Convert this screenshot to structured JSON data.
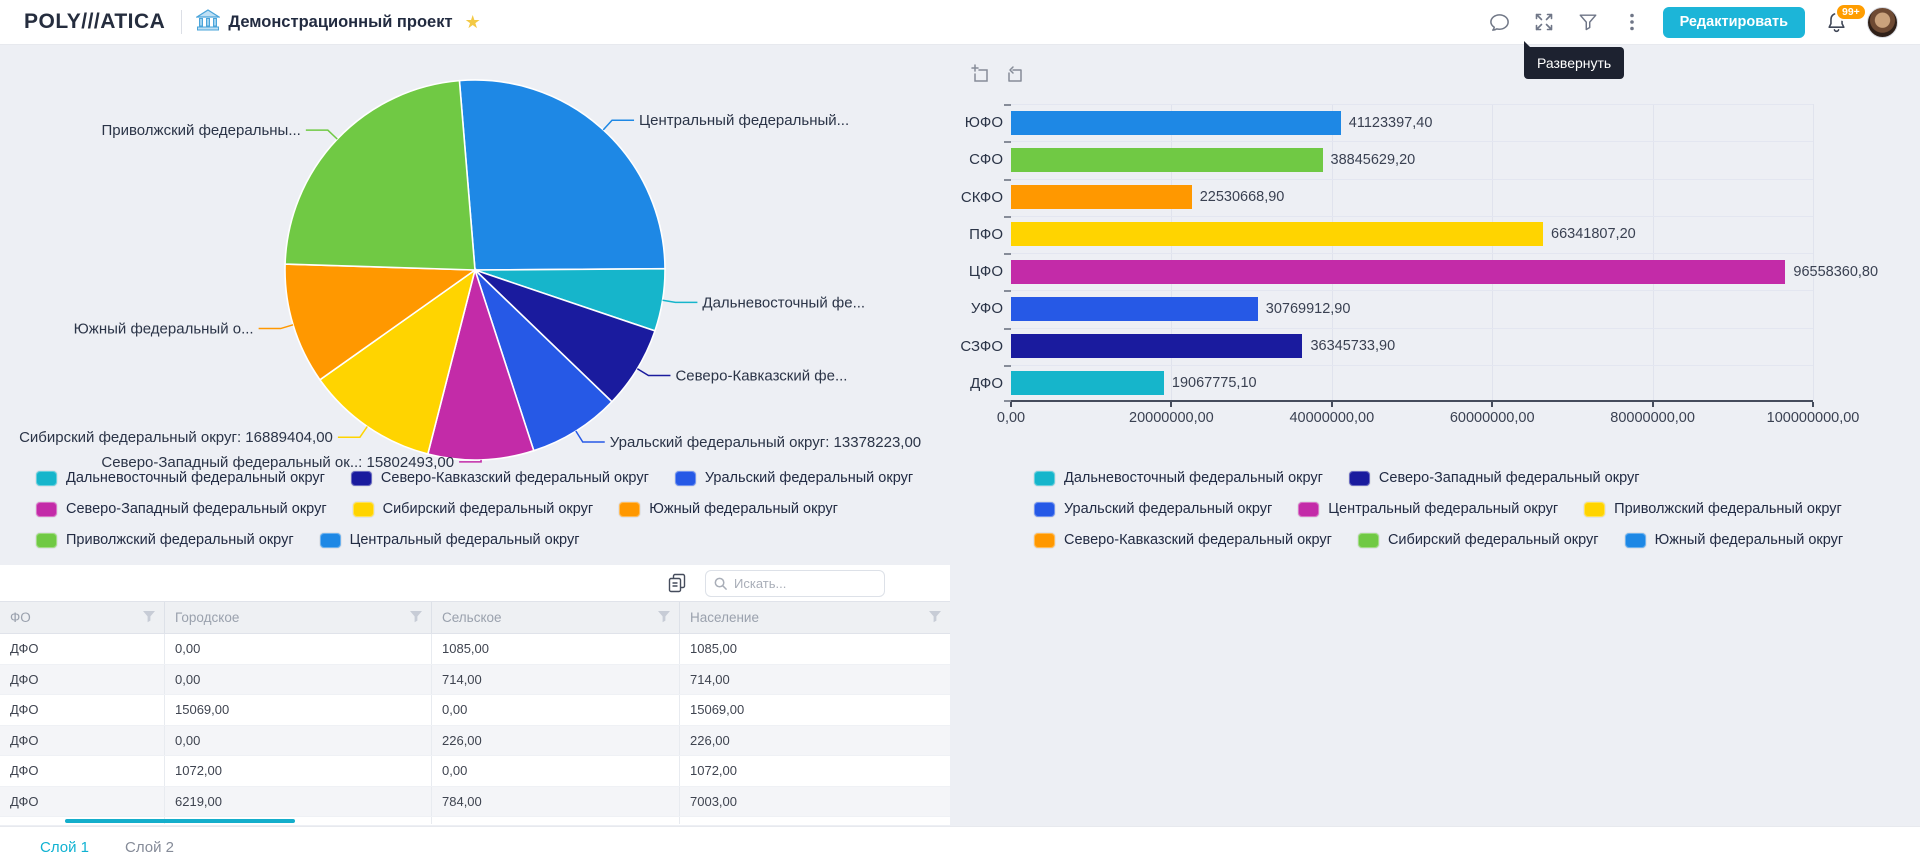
{
  "header": {
    "logo_text": "POLY///ATICA",
    "project_title": "Демонстрационный проект",
    "tooltip": "Развернуть",
    "actions": {
      "edit_button_label": "Редактировать",
      "notifications_badge": "99+"
    }
  },
  "colors": {
    "accent_cyan": "#1cb5d8",
    "page_background": "#edeff4",
    "tooltip_background": "#1d2230",
    "badge_orange": "#ff9d00",
    "palette": {
      "bright_blue": "#1e88e5",
      "cyan": "#16b5cb",
      "navy": "#1a1b9e",
      "royal_blue": "#2659e6",
      "magenta": "#c32ba8",
      "yellow": "#ffd400",
      "orange": "#ff9800",
      "green": "#70c944"
    }
  },
  "chart_data": [
    {
      "type": "pie",
      "start_offset_deg": -4.7,
      "legend_position": "bottom",
      "slices": [
        {
          "name": "Центральный федеральный округ",
          "callout": "Центральный федеральный...",
          "fraction": 0.262,
          "color": "#1e88e5",
          "side": "right"
        },
        {
          "name": "Дальневосточный федеральный округ",
          "callout": "Дальневосточный фе...",
          "fraction": 0.053,
          "color": "#16b5cb",
          "side": "right"
        },
        {
          "name": "Северо-Кавказский федеральный округ",
          "callout": "Северо-Кавказский фе...",
          "fraction": 0.07,
          "color": "#1a1b9e",
          "side": "right"
        },
        {
          "name": "Уральский федеральный округ",
          "callout": "Уральский федеральный округ: 13378223,00",
          "value": 13378223.0,
          "fraction": 0.078,
          "color": "#2659e6",
          "side": "right"
        },
        {
          "name": "Северо-Западный федеральный округ",
          "callout": "Северо-Западный федеральный ок..: 15802493,00",
          "value": 15802493.0,
          "fraction": 0.09,
          "color": "#c32ba8",
          "side": "left",
          "elbow": 2
        },
        {
          "name": "Сибирский федеральный округ",
          "callout": "Сибирский федеральный округ: 16889404,00",
          "value": 16889404.0,
          "fraction": 0.112,
          "color": "#ffd400",
          "side": "left"
        },
        {
          "name": "Южный федеральный округ",
          "callout": "Южный федеральный о...",
          "fraction": 0.103,
          "color": "#ff9800",
          "side": "left"
        },
        {
          "name": "Приволжский федеральный округ",
          "callout": "Приволжский федеральны...",
          "fraction": 0.232,
          "color": "#70c944",
          "side": "left"
        }
      ],
      "legend": [
        {
          "label": "Дальневосточный федеральный округ",
          "color": "#16b5cb"
        },
        {
          "label": "Северо-Кавказский федеральный округ",
          "color": "#1a1b9e"
        },
        {
          "label": "Уральский федеральный округ",
          "color": "#2659e6"
        },
        {
          "label": "Северо-Западный федеральный округ",
          "color": "#c32ba8"
        },
        {
          "label": "Сибирский федеральный округ",
          "color": "#ffd400"
        },
        {
          "label": "Южный федеральный округ",
          "color": "#ff9800"
        },
        {
          "label": "Приволжский федеральный округ",
          "color": "#70c944"
        },
        {
          "label": "Центральный федеральный округ",
          "color": "#1e88e5"
        }
      ]
    },
    {
      "type": "bar",
      "orientation": "horizontal",
      "grid": true,
      "legend_position": "bottom",
      "categories": [
        "ЮФО",
        "СФО",
        "СКФО",
        "ПФО",
        "ЦФО",
        "УФО",
        "СЗФО",
        "ДФО"
      ],
      "values": [
        41123397.4,
        38845629.2,
        22530668.9,
        66341807.2,
        96558360.8,
        30769912.9,
        36345733.9,
        19067775.1
      ],
      "value_labels": [
        "41123397,40",
        "38845629,20",
        "22530668,90",
        "66341807,20",
        "96558360,80",
        "30769912,90",
        "36345733,90",
        "19067775,10"
      ],
      "bar_colors": [
        "#1e88e5",
        "#70c944",
        "#ff9800",
        "#ffd400",
        "#c32ba8",
        "#2659e6",
        "#1a1b9e",
        "#16b5cb"
      ],
      "xlim": [
        0,
        100000000
      ],
      "x_tick_labels": [
        "0,00",
        "20000000,00",
        "40000000,00",
        "60000000,00",
        "80000000,00",
        "100000000,00"
      ],
      "legend": [
        {
          "label": "Дальневосточный федеральный округ",
          "color": "#16b5cb"
        },
        {
          "label": "Северо-Западный федеральный округ",
          "color": "#1a1b9e"
        },
        {
          "label": "Уральский федеральный округ",
          "color": "#2659e6"
        },
        {
          "label": "Центральный федеральный округ",
          "color": "#c32ba8"
        },
        {
          "label": "Приволжский федеральный округ",
          "color": "#ffd400"
        },
        {
          "label": "Северо-Кавказский федеральный округ",
          "color": "#ff9800"
        },
        {
          "label": "Сибирский федеральный округ",
          "color": "#70c944"
        },
        {
          "label": "Южный федеральный округ",
          "color": "#1e88e5"
        }
      ]
    }
  ],
  "table": {
    "search_placeholder": "Искать...",
    "columns": [
      {
        "label": "ФО"
      },
      {
        "label": "Городское"
      },
      {
        "label": "Сельское"
      },
      {
        "label": "Население"
      }
    ],
    "rows": [
      [
        "ДФО",
        "0,00",
        "1085,00",
        "1085,00"
      ],
      [
        "ДФО",
        "0,00",
        "714,00",
        "714,00"
      ],
      [
        "ДФО",
        "15069,00",
        "0,00",
        "15069,00"
      ],
      [
        "ДФО",
        "0,00",
        "226,00",
        "226,00"
      ],
      [
        "ДФО",
        "1072,00",
        "0,00",
        "1072,00"
      ],
      [
        "ДФО",
        "6219,00",
        "784,00",
        "7003,00"
      ]
    ]
  },
  "tabs": [
    {
      "label": "Слой 1",
      "active": true
    },
    {
      "label": "Слой 2",
      "active": false
    }
  ]
}
